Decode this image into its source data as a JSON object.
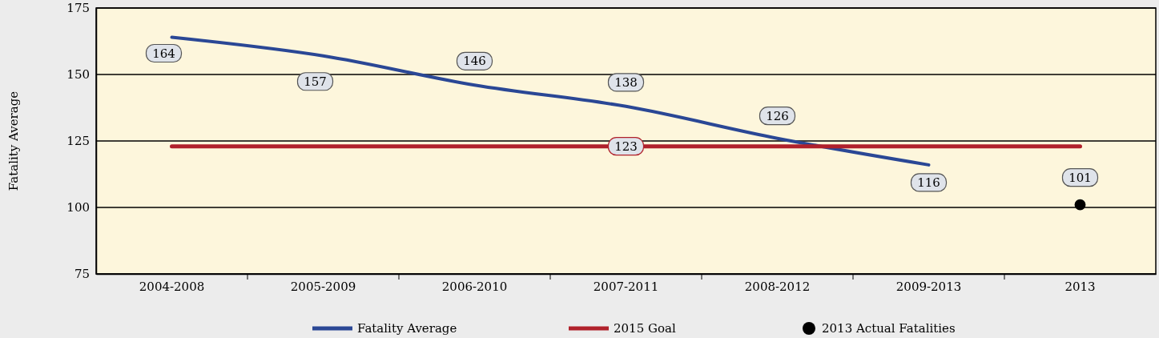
{
  "chart_data": {
    "type": "line",
    "ylabel": "Fatality Average",
    "categories": [
      "2004-2008",
      "2005-2009",
      "2006-2010",
      "2007-2011",
      "2008-2012",
      "2009-2013",
      "2013"
    ],
    "series": [
      {
        "name": "Fatality Average",
        "color": "#2a4795",
        "values": [
          164,
          157,
          146,
          138,
          126,
          116,
          null
        ],
        "value_labels": [
          "164",
          "157",
          "146",
          "138",
          "126",
          "116",
          null
        ]
      },
      {
        "name": "2015 Goal",
        "color": "#b0212b",
        "values": [
          123,
          123,
          123,
          123,
          123,
          123,
          123
        ],
        "value_labels": [
          null,
          null,
          null,
          "123",
          null,
          null,
          null
        ]
      },
      {
        "name": "2013 Actual Fatalities",
        "type": "scatter",
        "color": "#000000",
        "marker": "circle",
        "values": [
          null,
          null,
          null,
          null,
          null,
          null,
          101
        ],
        "value_labels": [
          null,
          null,
          null,
          null,
          null,
          null,
          "101"
        ]
      }
    ],
    "ylim": [
      75,
      175
    ],
    "yticks": [
      75,
      100,
      125,
      150,
      175
    ],
    "grid": "y",
    "legend": "bottom"
  }
}
